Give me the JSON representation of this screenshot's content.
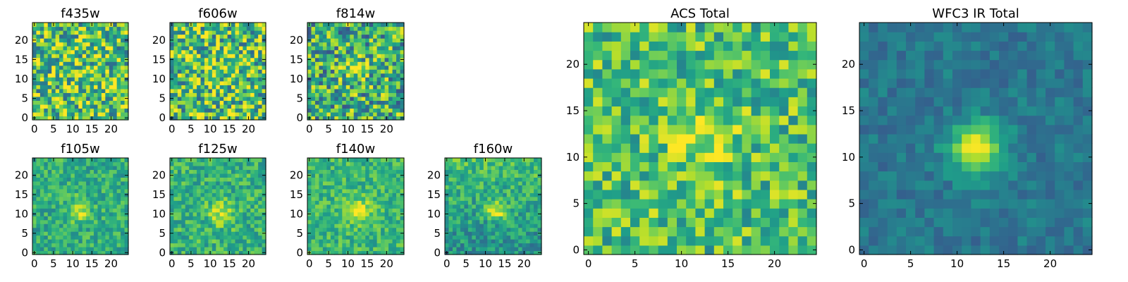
{
  "chart_data": [
    {
      "type": "heatmap",
      "title": "f435w",
      "xticks": [
        "0",
        "5",
        "10",
        "15",
        "20"
      ],
      "yticks": [
        "0",
        "5",
        "10",
        "15",
        "20"
      ],
      "xlim": [
        0,
        25
      ],
      "ylim": [
        0,
        25
      ],
      "grid_size": 25,
      "source_center": [
        12,
        12
      ],
      "source_strength": 0.05,
      "source_sigma": 2.5,
      "noise": 0.38,
      "bias": 0.72,
      "background_slope": 0.0,
      "seed": 11
    },
    {
      "type": "heatmap",
      "title": "f606w",
      "xticks": [
        "0",
        "5",
        "10",
        "15",
        "20"
      ],
      "yticks": [
        "0",
        "5",
        "10",
        "15",
        "20"
      ],
      "xlim": [
        0,
        25
      ],
      "ylim": [
        0,
        25
      ],
      "grid_size": 25,
      "source_center": [
        12,
        12
      ],
      "source_strength": 0.12,
      "source_sigma": 2.5,
      "noise": 0.38,
      "bias": 0.7,
      "background_slope": 0.0,
      "seed": 23
    },
    {
      "type": "heatmap",
      "title": "f814w",
      "xticks": [
        "0",
        "5",
        "10",
        "15",
        "20"
      ],
      "yticks": [
        "0",
        "5",
        "10",
        "15",
        "20"
      ],
      "xlim": [
        0,
        25
      ],
      "ylim": [
        0,
        25
      ],
      "grid_size": 25,
      "source_center": [
        12,
        12
      ],
      "source_strength": 0.25,
      "source_sigma": 2.2,
      "noise": 0.36,
      "bias": 0.62,
      "background_slope": 0.0,
      "seed": 37
    },
    {
      "type": "heatmap",
      "title": "f105w",
      "xticks": [
        "0",
        "5",
        "10",
        "15",
        "20"
      ],
      "yticks": [
        "0",
        "5",
        "10",
        "15",
        "20"
      ],
      "xlim": [
        0,
        25
      ],
      "ylim": [
        0,
        25
      ],
      "grid_size": 25,
      "source_center": [
        12,
        11
      ],
      "source_strength": 0.3,
      "source_sigma": 2.0,
      "noise": 0.17,
      "bias": 0.62,
      "background_slope": 0.0,
      "seed": 41
    },
    {
      "type": "heatmap",
      "title": "f125w",
      "xticks": [
        "0",
        "5",
        "10",
        "15",
        "20"
      ],
      "yticks": [
        "0",
        "5",
        "10",
        "15",
        "20"
      ],
      "xlim": [
        0,
        25
      ],
      "ylim": [
        0,
        25
      ],
      "grid_size": 25,
      "source_center": [
        13,
        10
      ],
      "source_strength": 0.28,
      "source_sigma": 2.2,
      "noise": 0.18,
      "bias": 0.64,
      "background_slope": 0.0,
      "seed": 53
    },
    {
      "type": "heatmap",
      "title": "f140w",
      "xticks": [
        "0",
        "5",
        "10",
        "15",
        "20"
      ],
      "yticks": [
        "0",
        "5",
        "10",
        "15",
        "20"
      ],
      "xlim": [
        0,
        25
      ],
      "ylim": [
        0,
        25
      ],
      "grid_size": 25,
      "source_center": [
        13,
        11
      ],
      "source_strength": 0.28,
      "source_sigma": 2.4,
      "noise": 0.16,
      "bias": 0.66,
      "background_slope": 0.0,
      "seed": 67
    },
    {
      "type": "heatmap",
      "title": "f160w",
      "xticks": [
        "0",
        "5",
        "10",
        "15",
        "20"
      ],
      "yticks": [
        "0",
        "5",
        "10",
        "15",
        "20"
      ],
      "xlim": [
        0,
        25
      ],
      "ylim": [
        0,
        25
      ],
      "grid_size": 25,
      "source_center": [
        13,
        11
      ],
      "source_strength": 0.4,
      "source_sigma": 1.8,
      "noise": 0.17,
      "bias": 0.5,
      "background_slope": 0.008,
      "seed": 79
    },
    {
      "type": "heatmap",
      "title": "ACS Total",
      "xticks": [
        "0",
        "5",
        "10",
        "15",
        "20"
      ],
      "yticks": [
        "0",
        "5",
        "10",
        "15",
        "20"
      ],
      "xlim": [
        0,
        25
      ],
      "ylim": [
        0,
        25
      ],
      "grid_size": 25,
      "source_center": [
        12,
        12
      ],
      "source_strength": 0.18,
      "source_sigma": 2.8,
      "noise": 0.25,
      "bias": 0.7,
      "background_slope": 0.0,
      "seed": 97
    },
    {
      "type": "heatmap",
      "title": "WFC3 IR Total",
      "xticks": [
        "0",
        "5",
        "10",
        "15",
        "20"
      ],
      "yticks": [
        "0",
        "5",
        "10",
        "15",
        "20"
      ],
      "xlim": [
        0,
        25
      ],
      "ylim": [
        0,
        25
      ],
      "grid_size": 25,
      "source_center": [
        12,
        11
      ],
      "source_strength": 0.55,
      "source_sigma": 2.0,
      "noise": 0.1,
      "bias": 0.4,
      "background_slope": 0.0,
      "seed": 101
    }
  ]
}
